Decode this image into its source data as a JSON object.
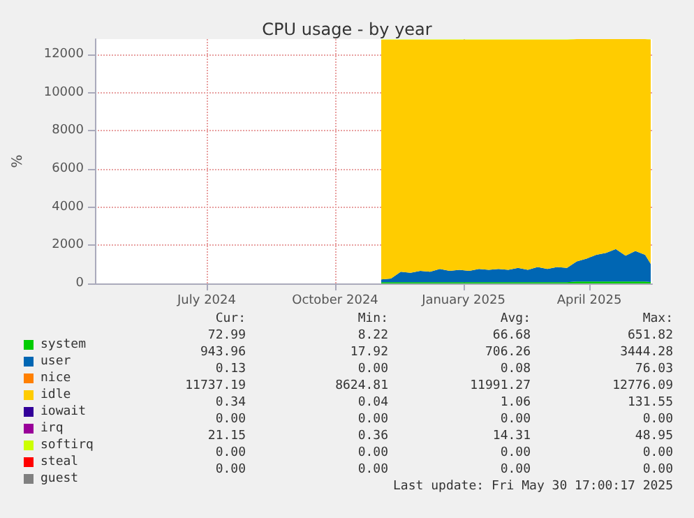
{
  "chart_data": {
    "type": "area",
    "stacked": true,
    "title": "CPU usage - by year",
    "ylabel": "%",
    "x": [
      "2024-11-03",
      "2024-11-10",
      "2024-11-17",
      "2024-11-24",
      "2024-12-01",
      "2024-12-08",
      "2024-12-15",
      "2024-12-22",
      "2024-12-29",
      "2025-01-05",
      "2025-01-12",
      "2025-01-19",
      "2025-01-26",
      "2025-02-02",
      "2025-02-09",
      "2025-02-16",
      "2025-02-23",
      "2025-03-02",
      "2025-03-09",
      "2025-03-16",
      "2025-03-23",
      "2025-03-30",
      "2025-04-06",
      "2025-04-13",
      "2025-04-20",
      "2025-04-27",
      "2025-05-04",
      "2025-05-11",
      "2025-05-15"
    ],
    "series": [
      {
        "name": "system",
        "color": "#00cc00",
        "values": [
          60,
          60,
          60,
          60,
          60,
          60,
          60,
          60,
          60,
          60,
          60,
          60,
          60,
          60,
          60,
          60,
          60,
          60,
          60,
          60,
          100,
          100,
          100,
          100,
          100,
          100,
          100,
          100,
          70
        ]
      },
      {
        "name": "user",
        "color": "#0066b3",
        "values": [
          150,
          200,
          550,
          500,
          600,
          550,
          700,
          600,
          650,
          600,
          700,
          650,
          700,
          650,
          750,
          650,
          800,
          700,
          800,
          750,
          1050,
          1200,
          1400,
          1500,
          1700,
          1350,
          1600,
          1400,
          950
        ]
      },
      {
        "name": "nice",
        "color": "#ff8000",
        "values": [
          null,
          null,
          null,
          null,
          null,
          null,
          null,
          null,
          null,
          null,
          null,
          null,
          null,
          null,
          null,
          null,
          null,
          null,
          null,
          null,
          null,
          null,
          null,
          null,
          null,
          null,
          null,
          null,
          null
        ]
      },
      {
        "name": "idle",
        "color": "#ffcc00",
        "values": [
          12550,
          12500,
          12150,
          12200,
          12100,
          12150,
          12000,
          12100,
          12050,
          12100,
          12000,
          12050,
          12000,
          12050,
          11950,
          12050,
          11900,
          12000,
          11900,
          11950,
          11650,
          11500,
          11300,
          11200,
          11000,
          11350,
          11100,
          11300,
          11750
        ]
      },
      {
        "name": "iowait",
        "color": "#330099",
        "values": [
          null,
          null,
          null,
          null,
          null,
          null,
          null,
          null,
          null,
          null,
          null,
          null,
          null,
          null,
          null,
          null,
          null,
          null,
          null,
          null,
          null,
          null,
          null,
          null,
          null,
          null,
          null,
          null,
          null
        ]
      },
      {
        "name": "irq",
        "color": "#990099",
        "values": [
          null,
          null,
          null,
          null,
          null,
          null,
          null,
          null,
          null,
          null,
          null,
          null,
          null,
          null,
          null,
          null,
          null,
          null,
          null,
          null,
          null,
          null,
          null,
          null,
          null,
          null,
          null,
          null,
          null
        ]
      },
      {
        "name": "softirq",
        "color": "#ccff00",
        "values": [
          20,
          20,
          20,
          20,
          20,
          20,
          20,
          20,
          20,
          20,
          20,
          20,
          20,
          20,
          20,
          20,
          20,
          20,
          20,
          20,
          20,
          20,
          20,
          20,
          20,
          20,
          20,
          20,
          20
        ]
      },
      {
        "name": "steal",
        "color": "#ff0000",
        "values": [
          null,
          null,
          null,
          null,
          null,
          null,
          null,
          null,
          null,
          null,
          null,
          null,
          null,
          null,
          null,
          null,
          null,
          null,
          null,
          null,
          null,
          null,
          null,
          null,
          null,
          null,
          null,
          null,
          null
        ]
      },
      {
        "name": "guest",
        "color": "#808080",
        "values": [
          null,
          null,
          null,
          null,
          null,
          null,
          null,
          null,
          null,
          null,
          null,
          null,
          null,
          null,
          null,
          null,
          null,
          null,
          null,
          null,
          null,
          null,
          null,
          null,
          null,
          null,
          null,
          null,
          null
        ]
      }
    ],
    "xlim": [
      "2024-04-12",
      "2025-05-16"
    ],
    "xticks": [
      {
        "value": "2024-07-01",
        "label": "July 2024"
      },
      {
        "value": "2024-10-01",
        "label": "October 2024"
      },
      {
        "value": "2025-01-01",
        "label": "January 2025"
      },
      {
        "value": "2025-04-01",
        "label": "April 2025"
      }
    ],
    "ylim": [
      0,
      12800
    ],
    "yticks": [
      0,
      2000,
      4000,
      6000,
      8000,
      10000,
      12000
    ],
    "grid": true,
    "legend": "bottom left",
    "annotations": [
      "Cur:",
      "Min:",
      "Avg:",
      "Max:",
      "72.99",
      "8.22",
      "66.68",
      "651.82",
      "943.96",
      "17.92",
      "706.26",
      "3444.28",
      "0.13",
      "0.00",
      "0.08",
      "76.03",
      "11737.19",
      "8624.81",
      "11991.27",
      "12776.09",
      "0.34",
      "0.04",
      "1.06",
      "131.55",
      "0.00",
      "0.00",
      "0.00",
      "0.00",
      "21.15",
      "0.36",
      "14.31",
      "48.95",
      "0.00",
      "0.00",
      "0.00",
      "0.00",
      "0.00",
      "0.00",
      "0.00",
      "0.00",
      "Last update: Fri May 30 17:00:17 2025"
    ]
  }
}
